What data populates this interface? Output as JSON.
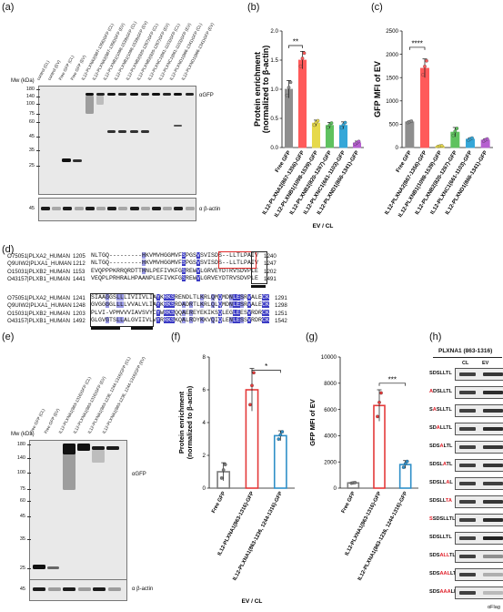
{
  "panels": {
    "a": "(a)",
    "b": "(b)",
    "c": "(c)",
    "d": "(d)",
    "e": "(e)",
    "f": "(f)",
    "g": "(g)",
    "h": "(h)"
  },
  "blot_a": {
    "mw_title": "Mw (kDa)",
    "lanes": [
      "control (CL)",
      "control (EV)",
      "Free GFP (CL)",
      "Free GFP (EV)",
      "IL12-PLXNA2(867-1356)GFP (CL)",
      "IL12-PLXNA2(867-1356)GFP (EV)",
      "IL12-PLXNB1(1098-1539)GFP (CL)",
      "IL12-PLXNB1(1098-1539)GFP (EV)",
      "IL12-PLXNB2(820-1267)GFP (CL)",
      "IL12-PLXNB2(820-1267)GFP (EV)",
      "IL12-PLXNC1(661-1103)GFP (CL)",
      "IL12-PLXNC1(661-1103)GFP (EV)",
      "IL12-PLXND1(866-1341)GFP (CL)",
      "IL12-PLXND1(866-1341)GFP (EV)"
    ],
    "mw_markers": [
      "180",
      "140",
      "100",
      "75",
      "60",
      "45",
      "35",
      "25"
    ],
    "actin_marker": "45",
    "antibody_top": "αGFP",
    "antibody_bottom": "α β-actin"
  },
  "chart_b": {
    "chart_data": {
      "type": "bar",
      "categories": [
        "Free GFP",
        "IL12-PLXNA2(867-1356)-GFP",
        "IL12-PLXNB1(1098-1539)-GFP",
        "IL12-PLXNB2(820-1267)-GFP",
        "IL12-PLXNC1(661-1103)-GFP",
        "IL12-PLXND1(866-1341)-GFP"
      ],
      "values": [
        1.0,
        1.5,
        0.42,
        0.38,
        0.38,
        0.08
      ],
      "errors": [
        0.15,
        0.15,
        0.05,
        0.05,
        0.06,
        0.03
      ],
      "colors": [
        "#8e8e8e",
        "#ff5a5a",
        "#e6d94b",
        "#5fc25f",
        "#35a7d8",
        "#b65fd0"
      ],
      "ylabel": "Protein enrichment (normalized to β-actin)",
      "xlabel": "EV / CL",
      "ylim": [
        0,
        2.0
      ],
      "yticks": [
        "0.0",
        "0.5",
        "1.0",
        "1.5",
        "2.0"
      ],
      "significance": "**"
    }
  },
  "chart_c": {
    "chart_data": {
      "type": "bar",
      "categories": [
        "Free GFP",
        "IL12-PLXNA2(867-1356)-GFP",
        "IL12-PLXNB1(1098-1539)-GFP",
        "IL12-PLXNB2(820-1267)-GFP",
        "IL12-PLXNC1(661-1103)-GFP",
        "IL12-PLXND1(866-1341)-GFP"
      ],
      "values": [
        550,
        1700,
        30,
        330,
        180,
        160
      ],
      "errors": [
        20,
        200,
        10,
        100,
        30,
        30
      ],
      "colors": [
        "#8e8e8e",
        "#ff5a5a",
        "#e6d94b",
        "#5fc25f",
        "#35a7d8",
        "#b65fd0"
      ],
      "ylabel": "GFP MFI of EV",
      "ylim": [
        0,
        2500
      ],
      "yticks": [
        "0",
        "500",
        "1000",
        "1500",
        "2000",
        "2500"
      ],
      "significance": "****"
    }
  },
  "alignment": {
    "block1": [
      {
        "name": "O75051|PLXA2_HUMAN",
        "start": "1205",
        "seq": "NLTGQ---------HKVMVHGGMVFSPGSVSVISDS--LLTLPAIV",
        "end": "1240"
      },
      {
        "name": "Q9UIW2|PLXA1_HUMAN",
        "start": "1212",
        "seq": "NLTGQ---------HKVMVHGGMVFSPGSVSVISDS--LLTLPAIV",
        "end": "1247"
      },
      {
        "name": "O15031|PLXB2_HUMAN",
        "start": "1153",
        "seq": "EVQPPPKRRQRDTTHNLPEFIVKFGSREWVLGRVEYDTRVSDVPLE",
        "end": "1202"
      },
      {
        "name": "O43157|PLXB1_HUMAN",
        "start": "1441",
        "seq": "VEQPLPRHRALHPAANPLEFIVKFGSREWVLGRVEYDTRVSDVPLE",
        "end": "1491"
      }
    ],
    "block2": [
      {
        "name": "O75051|PLXA2_HUMAN",
        "start": "1241",
        "seq": "SIAAGGSLLLIVIIVLIAYKRKSRENDLTLKRLQMQMDNLESRVALECK",
        "end": "1291"
      },
      {
        "name": "Q9UIW2|PLXA1_HUMAN",
        "start": "1248",
        "seq": "GVGGGGLLLLVVALVLIAYKRKSRDADRTLKRLQLQMDNLESRVALECK",
        "end": "1298"
      },
      {
        "name": "O15031|PLXB2_HUMAN",
        "start": "1203",
        "seq": "PLVI-VPMVVVIAVSVYCYWRKSQQAEREYEKIKSQLEGLEESVRDRCK",
        "end": "1251"
      },
      {
        "name": "O43157|PLXB1_HUMAN",
        "start": "1492",
        "seq": "GLGVGTSLLALGVIIVLVYRRKSKQALRDYKKVQIQLENLESSVRDRCK",
        "end": "1542"
      }
    ]
  },
  "blot_e": {
    "mw_title": "Mw (kDa)",
    "lanes": [
      "Free GFP (CL)",
      "Free GFP (EV)",
      "IL12-PLXNA1(863-1316)GFP (CL)",
      "IL12-PLXNA1(863-1316)GFP (EV)",
      "IL12-PLXNA1(863-1236, 1244-1316)GFP (CL)",
      "IL12-PLXNA1(863-1236, 1244-1316)GFP (EV)"
    ],
    "mw_markers": [
      "180",
      "140",
      "100",
      "75",
      "60",
      "45",
      "35",
      "25"
    ],
    "actin_marker": "45",
    "antibody_top": "αGFP",
    "antibody_bottom": "α β-actin"
  },
  "chart_f": {
    "chart_data": {
      "type": "bar",
      "categories": [
        "Free GFP",
        "IL12-PLXNA1(863-1316)-GFP",
        "IL12-PLXNA1(863-1236, 1244-1316)-GFP"
      ],
      "values": [
        1.0,
        6.0,
        3.2
      ],
      "errors": [
        0.55,
        1.3,
        0.3
      ],
      "colors": [
        "#7a7a7a",
        "#e43a3a",
        "#2f8fc8"
      ],
      "ylabel": "Protein enrichment (normalized to β-actin)",
      "xlabel": "EV / CL",
      "ylim": [
        0,
        8
      ],
      "yticks": [
        "0",
        "2",
        "4",
        "6",
        "8"
      ],
      "significance": "*"
    }
  },
  "chart_g": {
    "chart_data": {
      "type": "bar",
      "categories": [
        "Free GFP",
        "IL12-PLXNA1(863-1316)-GFP",
        "IL12-PLXNA1(863-1236, 1244-1316)-GFP"
      ],
      "values": [
        400,
        6300,
        1800
      ],
      "errors": [
        30,
        1200,
        300
      ],
      "colors": [
        "#7a7a7a",
        "#e43a3a",
        "#2f8fc8"
      ],
      "ylabel": "GFP MFI of EV",
      "ylim": [
        0,
        10000
      ],
      "yticks": [
        "0",
        "2000",
        "4000",
        "6000",
        "8000",
        "10000"
      ],
      "significance": "***"
    }
  },
  "panel_h": {
    "title": "PLXNA1 (863-1316)",
    "col_cl": "CL",
    "col_ev": "EV",
    "antibody": "αFlag",
    "rows": [
      {
        "pre": "SDS",
        "red": "",
        "post": "LLTL"
      },
      {
        "pre": "",
        "red": "A",
        "post": "DSLLTL"
      },
      {
        "pre": "S",
        "red": "A",
        "post": "SLLTL"
      },
      {
        "pre": "SD",
        "red": "A",
        "post": "LLTL"
      },
      {
        "pre": "SDS",
        "red": "A",
        "post": "LTL"
      },
      {
        "pre": "SDSL",
        "red": "A",
        "post": "TL"
      },
      {
        "pre": "SDSLL",
        "red": "A",
        "post": "L"
      },
      {
        "pre": "SDSLL",
        "red": "TA",
        "post": ""
      },
      {
        "pre": "",
        "red": "S",
        "post": "SDSLLTL"
      },
      {
        "pre": "SDSL",
        "red": "",
        "post": "LTL"
      },
      {
        "pre": "SDS",
        "red": "ALL",
        "post": "TL"
      },
      {
        "pre": "SDS",
        "red": "AAL",
        "post": "LTL"
      },
      {
        "pre": "SDS",
        "red": "AAA",
        "post": "LLTL"
      }
    ]
  }
}
